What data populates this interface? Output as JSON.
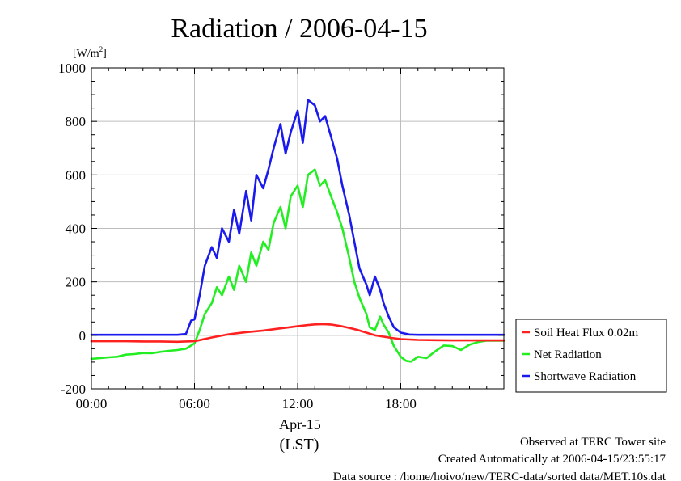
{
  "chart_data": {
    "type": "line",
    "title": "Radiation / 2006-04-15",
    "ylabel": "[W/m²]",
    "ylabel_base": "[W/m",
    "ylabel_sup": "2",
    "ylabel_end": "]",
    "xlabel_date": "Apr-15",
    "xlabel_tz": "(LST)",
    "xlim": [
      0,
      24
    ],
    "ylim": [
      -200,
      1000
    ],
    "xticks": [
      {
        "value": 0,
        "label": "00:00"
      },
      {
        "value": 6,
        "label": "06:00"
      },
      {
        "value": 12,
        "label": "12:00"
      },
      {
        "value": 18,
        "label": "18:00"
      }
    ],
    "yticks": [
      {
        "value": -200,
        "label": "-200"
      },
      {
        "value": 0,
        "label": "0"
      },
      {
        "value": 200,
        "label": "200"
      },
      {
        "value": 400,
        "label": "400"
      },
      {
        "value": 600,
        "label": "600"
      },
      {
        "value": 800,
        "label": "800"
      },
      {
        "value": 1000,
        "label": "1000"
      }
    ],
    "grid": true,
    "legend_position": "right",
    "series": [
      {
        "name": "Soil Heat Flux 0.02m",
        "color": "#ff2020",
        "x": [
          0,
          1,
          2,
          3,
          4,
          5,
          6,
          6.5,
          7,
          7.5,
          8,
          8.5,
          9,
          9.5,
          10,
          10.5,
          11,
          11.5,
          12,
          12.5,
          13,
          13.5,
          14,
          14.5,
          15,
          15.5,
          16,
          16.5,
          17,
          17.5,
          18,
          19,
          20,
          21,
          22,
          23,
          24
        ],
        "y": [
          -22,
          -22,
          -22,
          -23,
          -23,
          -24,
          -22,
          -15,
          -8,
          -2,
          4,
          8,
          12,
          15,
          18,
          22,
          26,
          30,
          34,
          38,
          41,
          42,
          40,
          35,
          28,
          20,
          10,
          0,
          -5,
          -10,
          -14,
          -17,
          -18,
          -19,
          -19,
          -19,
          -19
        ]
      },
      {
        "name": "Net Radiation",
        "color": "#22ee22",
        "x": [
          0,
          0.5,
          1,
          1.5,
          2,
          2.5,
          3,
          3.5,
          4,
          4.5,
          5,
          5.5,
          6,
          6.3,
          6.6,
          7,
          7.3,
          7.6,
          8,
          8.3,
          8.6,
          9,
          9.3,
          9.6,
          10,
          10.3,
          10.6,
          11,
          11.3,
          11.6,
          12,
          12.3,
          12.6,
          13,
          13.3,
          13.6,
          14,
          14.3,
          14.6,
          15,
          15.3,
          15.6,
          16,
          16.2,
          16.5,
          16.8,
          17,
          17.3,
          17.6,
          18,
          18.3,
          18.6,
          19,
          19.5,
          20,
          20.5,
          21,
          21.5,
          22,
          22.5,
          23,
          23.5,
          24
        ],
        "y": [
          -88,
          -85,
          -82,
          -80,
          -72,
          -70,
          -66,
          -67,
          -62,
          -58,
          -55,
          -50,
          -30,
          20,
          80,
          120,
          180,
          150,
          220,
          170,
          260,
          200,
          310,
          260,
          350,
          320,
          420,
          480,
          400,
          520,
          560,
          480,
          600,
          620,
          560,
          580,
          510,
          460,
          400,
          290,
          200,
          140,
          80,
          30,
          20,
          70,
          40,
          10,
          -40,
          -80,
          -95,
          -98,
          -80,
          -85,
          -60,
          -38,
          -40,
          -55,
          -35,
          -25,
          -20,
          -20,
          -20
        ]
      },
      {
        "name": "Shortwave Radiation",
        "color": "#1a1aee",
        "x": [
          0,
          1,
          2,
          3,
          4,
          5,
          5.5,
          5.8,
          6,
          6.3,
          6.6,
          7,
          7.3,
          7.6,
          8,
          8.3,
          8.6,
          9,
          9.3,
          9.6,
          10,
          10.3,
          10.6,
          11,
          11.3,
          11.6,
          12,
          12.3,
          12.6,
          13,
          13.3,
          13.6,
          14,
          14.3,
          14.6,
          15,
          15.3,
          15.6,
          16,
          16.2,
          16.5,
          16.8,
          17,
          17.3,
          17.6,
          18,
          18.5,
          19,
          20,
          21,
          22,
          23,
          24
        ],
        "y": [
          2,
          2,
          2,
          2,
          2,
          2,
          5,
          55,
          60,
          150,
          260,
          330,
          290,
          400,
          350,
          470,
          380,
          540,
          430,
          600,
          550,
          620,
          700,
          790,
          680,
          760,
          840,
          720,
          880,
          860,
          800,
          820,
          730,
          660,
          560,
          450,
          350,
          250,
          190,
          150,
          220,
          170,
          120,
          70,
          30,
          10,
          3,
          2,
          2,
          2,
          2,
          2,
          2
        ]
      }
    ]
  },
  "footer": {
    "line1": "Observed at TERC Tower site",
    "line2": "Created Automatically at 2006-04-15/23:55:17",
    "line3": "Data source : /home/hoivo/new/TERC-data/sorted  data/MET.10s.dat"
  }
}
